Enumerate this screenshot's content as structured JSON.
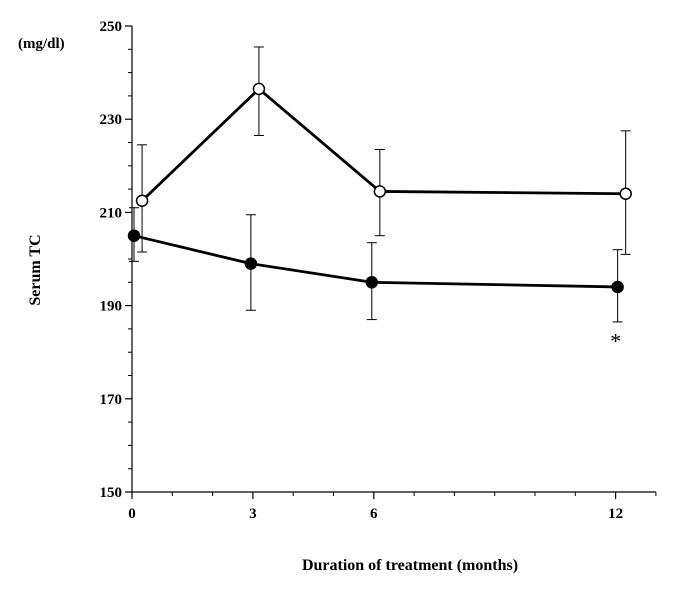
{
  "chart_data": {
    "type": "line",
    "title": "",
    "xlabel": "Duration of treatment (months)",
    "ylabel": "Serum TC",
    "y_unit": "(mg/dl)",
    "xlim": [
      0,
      13
    ],
    "ylim": [
      150,
      250
    ],
    "x_ticks": [
      0,
      3,
      6,
      12
    ],
    "x_minor_ticks": [
      1,
      2,
      4,
      5,
      7,
      8,
      9,
      10,
      11,
      13
    ],
    "y_ticks": [
      150,
      170,
      190,
      210,
      230,
      250
    ],
    "y_minor_ticks": [
      155,
      160,
      165,
      175,
      180,
      185,
      195,
      200,
      205,
      215,
      220,
      225,
      235,
      240,
      245
    ],
    "grid": false,
    "series": [
      {
        "name": "open circles",
        "marker": "open-circle",
        "x": [
          0.25,
          3.15,
          6.15,
          12.25
        ],
        "values": [
          212.5,
          236.5,
          214.5,
          214
        ],
        "err_upper": [
          224.5,
          245.5,
          223.5,
          227.5
        ],
        "err_lower": [
          201.5,
          226.5,
          205,
          201
        ],
        "color": "#000000"
      },
      {
        "name": "filled circles",
        "marker": "filled-circle",
        "x": [
          0.05,
          2.95,
          5.95,
          12.05
        ],
        "values": [
          205,
          199,
          195,
          194
        ],
        "err_upper": [
          211,
          209.5,
          203.5,
          202
        ],
        "err_lower": [
          199.5,
          189,
          187,
          186.5
        ],
        "color": "#000000"
      }
    ],
    "annotations": [
      {
        "text": "*",
        "x": 12.0,
        "y": 182.5
      }
    ]
  }
}
